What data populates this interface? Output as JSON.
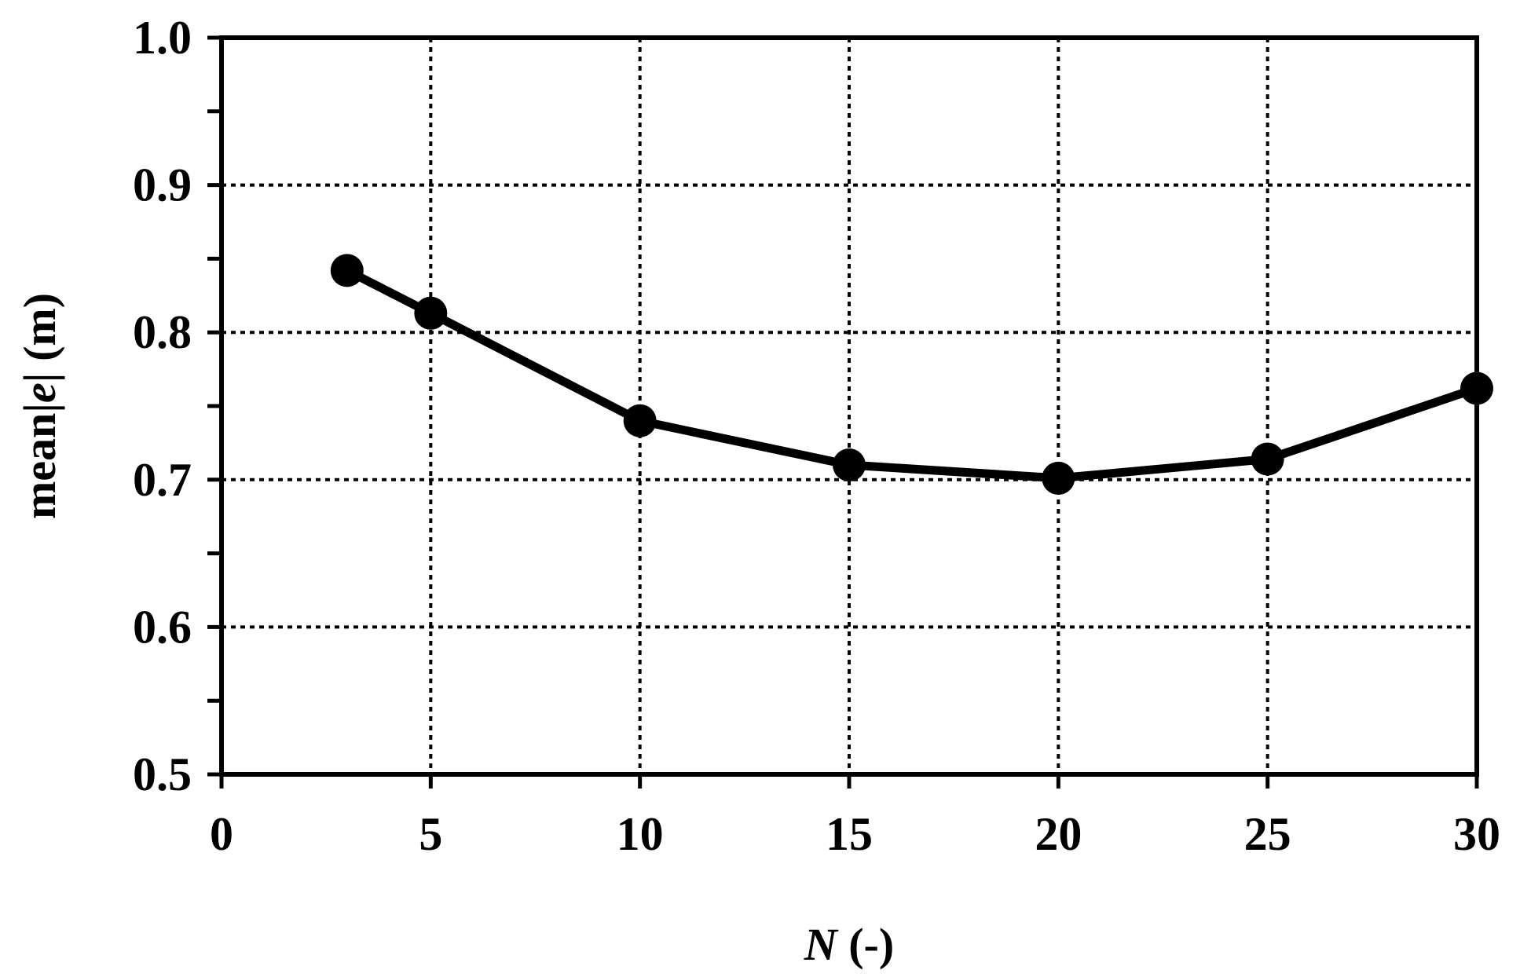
{
  "chart_data": {
    "type": "line",
    "x": [
      3,
      5,
      10,
      15,
      20,
      25,
      30
    ],
    "series": [
      {
        "values": [
          0.842,
          0.813,
          0.74,
          0.71,
          0.701,
          0.714,
          0.762
        ]
      }
    ],
    "xlim": [
      0,
      30
    ],
    "ylim": [
      0.5,
      1.0
    ],
    "xticks": [
      0,
      5,
      10,
      15,
      20,
      25,
      30
    ],
    "yticks": [
      0.5,
      0.6,
      0.7,
      0.8,
      0.9,
      1.0
    ],
    "xtick_labels": [
      "0",
      "5",
      "10",
      "15",
      "20",
      "25",
      "30"
    ],
    "ytick_labels": [
      "0.5",
      "0.6",
      "0.7",
      "0.8",
      "0.9",
      "1.0"
    ],
    "xlabel": {
      "var": "N",
      "rest": " (-)"
    },
    "ylabel": {
      "pre": "mean|",
      "var": "e",
      "post": "|  (m)"
    },
    "grid": true,
    "grid_style": "dotted",
    "line_color": "#000000",
    "marker": "circle"
  }
}
